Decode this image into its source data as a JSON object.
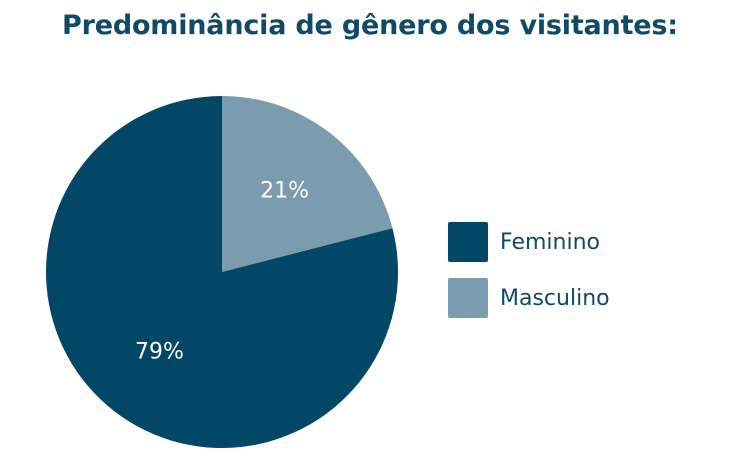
{
  "chart_data": {
    "type": "pie",
    "title": "Predominância de gênero dos visitantes:",
    "categories": [
      "Feminino",
      "Masculino"
    ],
    "values": [
      79,
      21
    ],
    "value_labels": [
      "79%",
      "21%"
    ],
    "colors": [
      "#024866",
      "#7a9cae"
    ],
    "legend_position": "right"
  }
}
